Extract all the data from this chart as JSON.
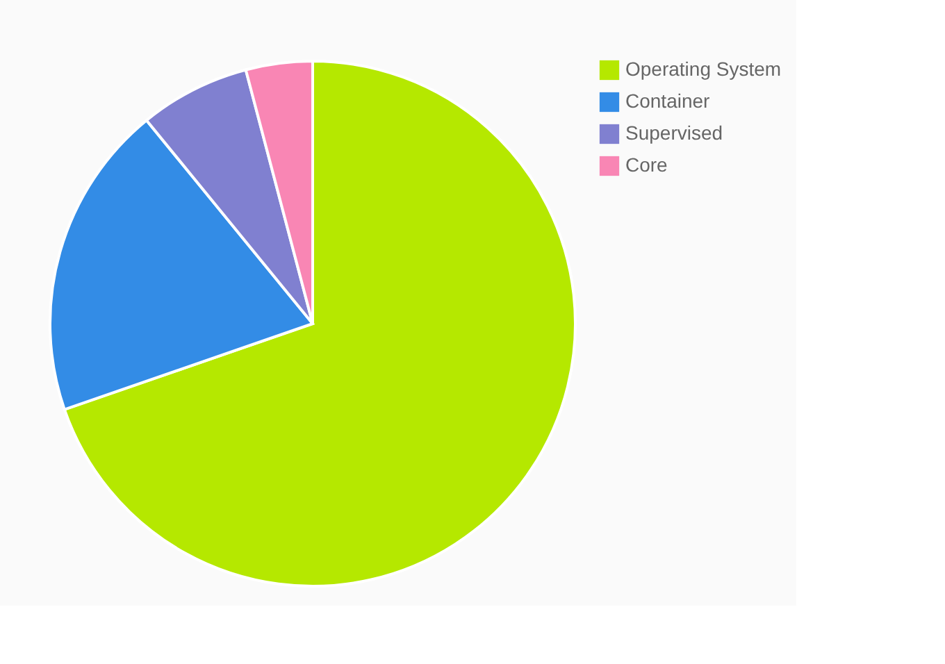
{
  "chart_data": {
    "type": "pie",
    "categories": [
      "Operating System",
      "Container",
      "Supervised",
      "Core"
    ],
    "values": [
      69.7,
      19.4,
      6.8,
      4.1
    ],
    "colors": [
      "#b5e800",
      "#338ce6",
      "#8080d0",
      "#f986b4"
    ],
    "legend": "right"
  }
}
